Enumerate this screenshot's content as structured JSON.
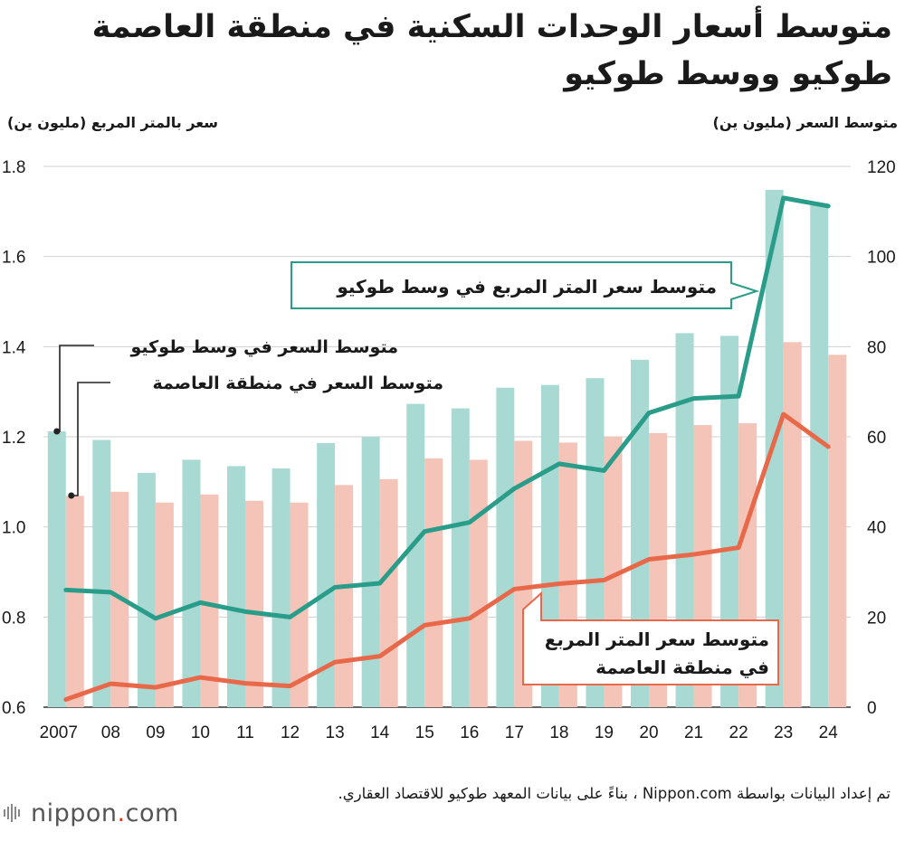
{
  "header": {
    "title": "متوسط أسعار الوحدات السكنية في منطقة العاصمة طوكيو ووسط طوكيو"
  },
  "axes": {
    "left_title": "سعر بالمتر المربع (مليون ين)",
    "right_title": "متوسط السعر (مليون ين)"
  },
  "footer": {
    "source": "تم إعداد البيانات بواسطة Nippon.com ، بناءً على بيانات المعهد طوكيو للاقتصاد العقاري.",
    "logo_text": "nippon",
    "logo_dot": ".",
    "logo_suffix": "com"
  },
  "colors": {
    "teal_line": "#2a9d8a",
    "teal_bar": "#a9d9d3",
    "orange_line": "#e8694a",
    "orange_bar": "#f5c4b8"
  },
  "chart_data": {
    "type": "bar+line",
    "categories": [
      "2007",
      "08",
      "09",
      "10",
      "11",
      "12",
      "13",
      "14",
      "15",
      "16",
      "17",
      "18",
      "19",
      "20",
      "21",
      "22",
      "23",
      "24"
    ],
    "left_axis": {
      "title": "سعر بالمتر المربع (مليون ين)",
      "range": [
        0.6,
        1.8
      ],
      "ticks": [
        "0.6",
        "0.8",
        "1.0",
        "1.2",
        "1.4",
        "1.6",
        "1.8"
      ]
    },
    "right_axis": {
      "title": "متوسط السعر (مليون ين)",
      "range": [
        0,
        120
      ],
      "ticks": [
        "0",
        "20",
        "40",
        "60",
        "80",
        "100",
        "120"
      ]
    },
    "bars": [
      {
        "name": "متوسط السعر في وسط طوكيو",
        "axis": "right",
        "color": "#a9d9d3",
        "values": [
          61.2,
          59.3,
          52.0,
          54.9,
          53.5,
          53.0,
          58.6,
          60.0,
          67.3,
          66.3,
          70.9,
          71.5,
          73.0,
          77.1,
          83.0,
          82.4,
          114.8,
          111.5
        ]
      },
      {
        "name": "متوسط السعر في منطقة العاصمة",
        "axis": "right",
        "color": "#f5c4b8",
        "values": [
          46.9,
          47.8,
          45.4,
          47.2,
          45.8,
          45.4,
          49.3,
          50.6,
          55.2,
          54.9,
          59.1,
          58.7,
          60.0,
          60.8,
          62.6,
          63.0,
          81.0,
          78.2
        ]
      }
    ],
    "lines": [
      {
        "name": "متوسط سعر المتر المربع في وسط طوكيو",
        "axis": "left",
        "color": "#2a9d8a",
        "values": [
          0.86,
          0.855,
          0.797,
          0.832,
          0.812,
          0.8,
          0.866,
          0.875,
          0.99,
          1.01,
          1.085,
          1.14,
          1.125,
          1.253,
          1.285,
          1.29,
          1.73,
          1.712
        ]
      },
      {
        "name": "متوسط سعر المتر المربع في منطقة العاصمة",
        "axis": "left",
        "color": "#e8694a",
        "values": [
          0.617,
          0.652,
          0.644,
          0.666,
          0.653,
          0.647,
          0.7,
          0.713,
          0.782,
          0.797,
          0.862,
          0.874,
          0.882,
          0.928,
          0.939,
          0.954,
          1.25,
          1.178
        ]
      }
    ],
    "grid": "horizontal",
    "labels": {
      "center_price": "متوسط السعر في وسط طوكيو",
      "capital_price": "متوسط السعر في منطقة العاصمة",
      "center_sqm": "متوسط سعر المتر المربع في وسط طوكيو",
      "capital_sqm_line1": "متوسط سعر المتر المربع",
      "capital_sqm_line2": "في منطقة العاصمة"
    }
  }
}
